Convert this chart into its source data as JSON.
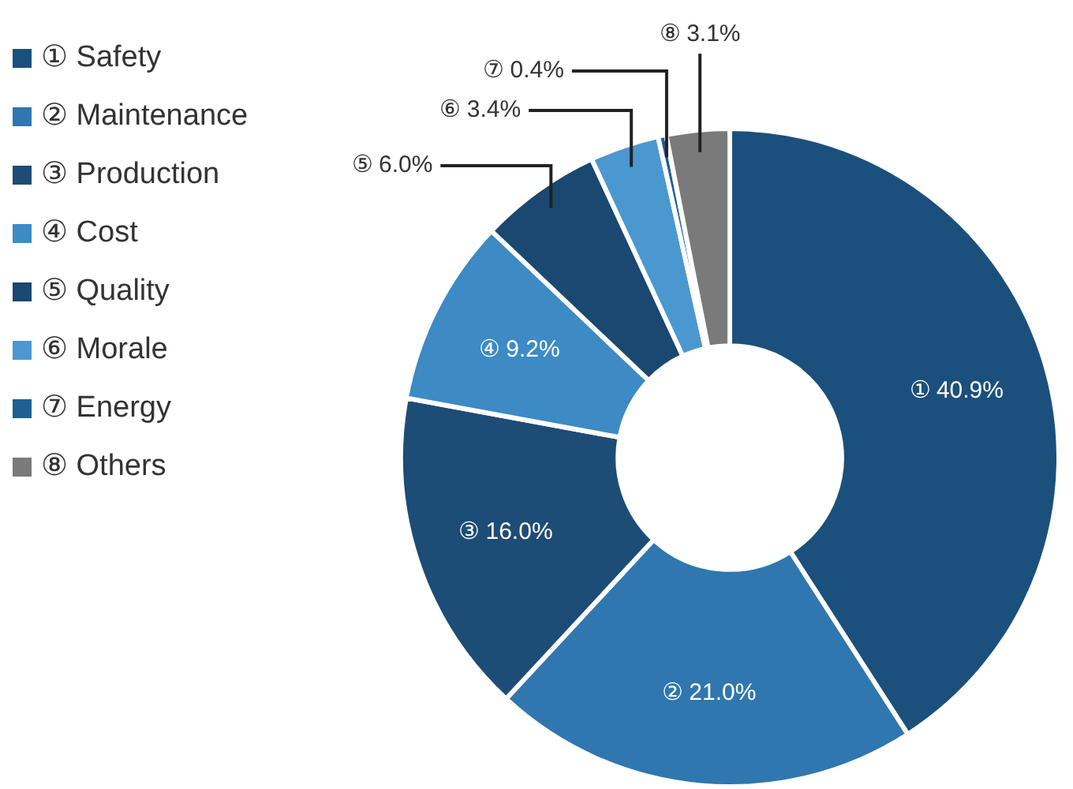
{
  "chart_data": {
    "type": "donut",
    "categories": [
      "① Safety",
      "② Maintenance",
      "③ Production",
      "④ Cost",
      "⑤ Quality",
      "⑥ Morale",
      "⑦ Energy",
      "⑧ Others"
    ],
    "values": [
      40.9,
      21.0,
      16.0,
      9.2,
      6.0,
      3.4,
      0.4,
      3.1
    ],
    "colors": [
      "#1b507c",
      "#2f77ae",
      "#1d4c77",
      "#3d8ac4",
      "#1a4870",
      "#4b98d0",
      "#1f5f93",
      "#7a7a7a"
    ],
    "value_labels": [
      "① 40.9%",
      "② 21.0%",
      "③ 16.0%",
      "④ 9.2%",
      "⑤ 6.0%",
      "⑥ 3.4%",
      "⑦ 0.4%",
      "⑧ 3.1%"
    ],
    "legend": "top left"
  }
}
